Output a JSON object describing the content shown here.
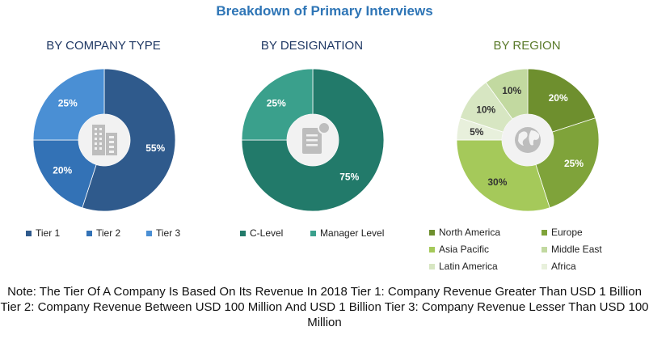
{
  "title": "Breakdown of Primary Interviews",
  "chart_data": [
    {
      "type": "pie",
      "title": "BY COMPANY TYPE",
      "title_color": "#1f3864",
      "series": [
        {
          "name": "Tier 1",
          "value": 55,
          "label": "55%",
          "color": "#2f5a8c"
        },
        {
          "name": "Tier 2",
          "value": 20,
          "label": "20%",
          "color": "#3372b6"
        },
        {
          "name": "Tier 3",
          "value": 25,
          "label": "25%",
          "color": "#4a8fd4"
        }
      ],
      "center_icon": "building-icon",
      "start_angle": 0,
      "clockwise": true,
      "order": [
        0,
        1,
        2
      ]
    },
    {
      "type": "pie",
      "title": "BY DESIGNATION",
      "title_color": "#1f3864",
      "series": [
        {
          "name": "C-Level",
          "value": 75,
          "label": "75%",
          "color": "#227a6a"
        },
        {
          "name": "Manager Level",
          "value": 25,
          "label": "25%",
          "color": "#3aa08c"
        }
      ],
      "center_icon": "document-icon",
      "start_angle": 0,
      "clockwise": true,
      "order": [
        0,
        1
      ]
    },
    {
      "type": "pie",
      "title": "BY REGION",
      "title_color": "#5a7a2a",
      "series": [
        {
          "name": "North America",
          "value": 20,
          "label": "20%",
          "color": "#6e8f2e"
        },
        {
          "name": "Europe",
          "value": 25,
          "label": "25%",
          "color": "#7fa33a"
        },
        {
          "name": "Asia Pacific",
          "value": 30,
          "label": "30%",
          "color": "#a5c95a"
        },
        {
          "name": "Middle East",
          "value": 10,
          "label": "10%",
          "color": "#c2d9a0"
        },
        {
          "name": "Latin America",
          "value": 10,
          "label": "10%",
          "color": "#d7e6c2"
        },
        {
          "name": "Africa",
          "value": 5,
          "label": "5%",
          "color": "#e8f0dc"
        }
      ],
      "center_icon": "globe-icon",
      "start_angle": 0,
      "clockwise": true,
      "order": [
        0,
        1,
        2,
        5,
        4,
        3
      ]
    }
  ],
  "note": "Note: The Tier Of A Company Is Based On Its Revenue In 2018 Tier 1: Company Revenue Greater Than USD 1 Billion Tier 2: Company Revenue Between USD 100 Million And USD 1 Billion Tier 3: Company Revenue Lesser Than USD 100 Million"
}
